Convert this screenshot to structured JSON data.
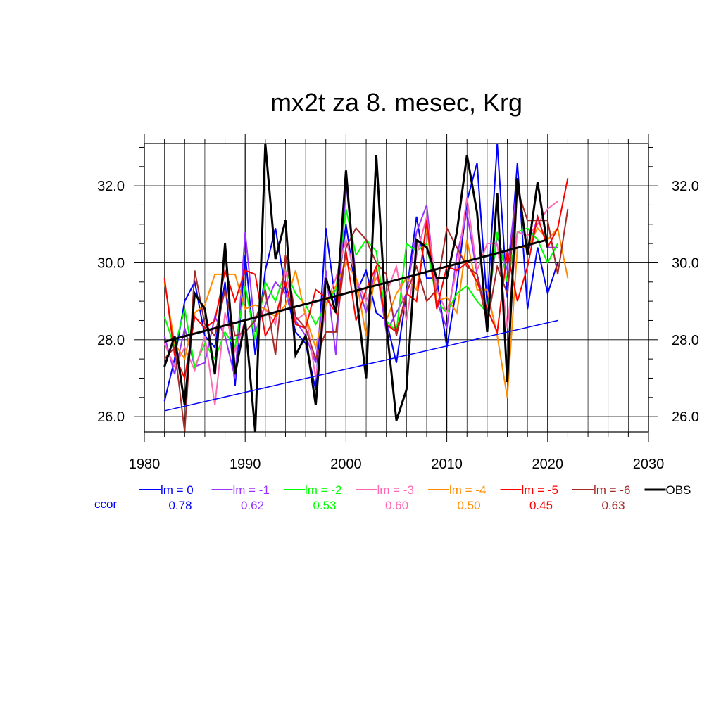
{
  "chart_data": {
    "type": "line",
    "title": "mx2t za 8. mesec, Krg",
    "xlim": [
      1980,
      2030
    ],
    "ylim": [
      25.6,
      33.1
    ],
    "x_ticks": [
      "1980",
      "1990",
      "2000",
      "2010",
      "2020",
      "2030"
    ],
    "y_ticks": [
      "26.0",
      "28.0",
      "30.0",
      "32.0"
    ],
    "grid": true,
    "legend_position": "bottom",
    "ccor_label": "ccor",
    "series": [
      {
        "name": "lm = 0",
        "color": "#0000ff",
        "ccor": "0.78",
        "x": [
          1982,
          1983,
          1984,
          1985,
          1986,
          1987,
          1988,
          1989,
          1990,
          1991,
          1992,
          1993,
          1994,
          1995,
          1996,
          1997,
          1998,
          1999,
          2000,
          2001,
          2002,
          2003,
          2004,
          2005,
          2006,
          2007,
          2008,
          2009,
          2010,
          2011,
          2012,
          2013,
          2014,
          2015,
          2016,
          2017,
          2018,
          2019,
          2020,
          2021
        ],
        "values": [
          26.4,
          27.5,
          29.0,
          29.5,
          28.1,
          27.8,
          29.5,
          26.8,
          30.2,
          27.6,
          29.8,
          30.9,
          29.3,
          28.2,
          27.9,
          26.7,
          30.9,
          28.9,
          31.0,
          29.2,
          29.8,
          28.7,
          28.5,
          27.4,
          29.2,
          31.2,
          29.6,
          29.6,
          27.8,
          29.4,
          31.6,
          32.6,
          28.9,
          33.1,
          29.1,
          32.6,
          28.8,
          30.4,
          29.2,
          30.0
        ]
      },
      {
        "name": "lm = -1",
        "color": "#9933ff",
        "ccor": "0.62",
        "x": [
          1982,
          1983,
          1984,
          1985,
          1986,
          1987,
          1988,
          1989,
          1990,
          1991,
          1992,
          1993,
          1994,
          1995,
          1996,
          1997,
          1998,
          1999,
          2000,
          2001,
          2002,
          2003,
          2004,
          2005,
          2006,
          2007,
          2008,
          2009,
          2010,
          2011,
          2012,
          2013,
          2014,
          2015,
          2016,
          2017,
          2018,
          2019,
          2020,
          2021
        ],
        "values": [
          28.1,
          27.1,
          28.3,
          27.3,
          27.4,
          28.6,
          28.1,
          27.0,
          30.8,
          28.2,
          28.9,
          29.5,
          29.2,
          28.5,
          28.1,
          27.4,
          29.8,
          27.6,
          32.1,
          29.6,
          28.7,
          29.9,
          28.2,
          28.7,
          29.2,
          30.8,
          31.5,
          29.0,
          28.3,
          30.2,
          31.3,
          29.7,
          28.7,
          30.7,
          29.8,
          32.1,
          30.2,
          31.2,
          30.4,
          30.4
        ]
      },
      {
        "name": "lm = -2",
        "color": "#00ff00",
        "ccor": "0.53",
        "x": [
          1982,
          1983,
          1984,
          1985,
          1986,
          1987,
          1988,
          1989,
          1990,
          1991,
          1992,
          1993,
          1994,
          1995,
          1996,
          1997,
          1998,
          1999,
          2000,
          2001,
          2002,
          2003,
          2004,
          2005,
          2006,
          2007,
          2008,
          2009,
          2010,
          2011,
          2012,
          2013,
          2014,
          2015,
          2016,
          2017,
          2018,
          2019,
          2020,
          2021
        ],
        "values": [
          28.6,
          27.8,
          28.8,
          27.3,
          27.9,
          27.5,
          28.2,
          27.8,
          29.4,
          28.0,
          29.5,
          29.0,
          29.8,
          29.2,
          28.9,
          28.4,
          28.9,
          29.3,
          31.4,
          30.2,
          30.6,
          30.3,
          28.5,
          28.2,
          30.5,
          30.3,
          30.5,
          29.0,
          28.7,
          29.2,
          29.4,
          29.0,
          28.7,
          30.8,
          29.5,
          30.8,
          30.9,
          30.6,
          30.0,
          30.5
        ]
      },
      {
        "name": "lm = -3",
        "color": "#ff69b4",
        "ccor": "0.60",
        "x": [
          1982,
          1983,
          1984,
          1985,
          1986,
          1987,
          1988,
          1989,
          1990,
          1991,
          1992,
          1993,
          1994,
          1995,
          1996,
          1997,
          1998,
          1999,
          2000,
          2001,
          2002,
          2003,
          2004,
          2005,
          2006,
          2007,
          2008,
          2009,
          2010,
          2011,
          2012,
          2013,
          2014,
          2015,
          2016,
          2017,
          2018,
          2019,
          2020,
          2021
        ],
        "values": [
          27.9,
          27.3,
          27.8,
          27.2,
          28.1,
          26.3,
          28.7,
          27.7,
          28.5,
          28.6,
          28.8,
          28.4,
          29.8,
          28.5,
          28.7,
          27.0,
          28.9,
          29.6,
          30.6,
          29.6,
          29.0,
          29.6,
          29.2,
          29.9,
          28.5,
          30.2,
          31.2,
          29.3,
          28.7,
          29.8,
          31.7,
          29.8,
          30.5,
          30.5,
          28.3,
          30.8,
          30.7,
          31.0,
          31.4,
          31.6
        ]
      },
      {
        "name": "lm = -4",
        "color": "#ff8c00",
        "ccor": "0.50",
        "x": [
          1982,
          1983,
          1984,
          1985,
          1986,
          1987,
          1988,
          1989,
          1990,
          1991,
          1992,
          1993,
          1994,
          1995,
          1996,
          1997,
          1998,
          1999,
          2000,
          2001,
          2002,
          2003,
          2004,
          2005,
          2006,
          2007,
          2008,
          2009,
          2010,
          2011,
          2012,
          2013,
          2014,
          2015,
          2016,
          2017,
          2018,
          2019,
          2020,
          2021,
          2022
        ],
        "values": [
          29.5,
          27.9,
          27.5,
          28.7,
          28.9,
          29.7,
          29.7,
          29.7,
          28.8,
          28.9,
          28.8,
          28.6,
          28.9,
          29.8,
          28.6,
          27.8,
          28.9,
          29.4,
          30.0,
          29.6,
          28.1,
          29.9,
          28.5,
          29.2,
          29.6,
          29.3,
          30.9,
          29.0,
          29.1,
          28.7,
          30.6,
          29.3,
          29.3,
          28.1,
          26.5,
          30.4,
          30.4,
          30.9,
          30.6,
          30.9,
          29.6
        ]
      },
      {
        "name": "lm = -5",
        "color": "#ff0000",
        "ccor": "0.45",
        "x": [
          1982,
          1983,
          1984,
          1985,
          1986,
          1987,
          1988,
          1989,
          1990,
          1991,
          1992,
          1993,
          1994,
          1995,
          1996,
          1997,
          1998,
          1999,
          2000,
          2001,
          2002,
          2003,
          2004,
          2005,
          2006,
          2007,
          2008,
          2009,
          2010,
          2011,
          2012,
          2013,
          2014,
          2015,
          2016,
          2017,
          2018,
          2019,
          2020,
          2021,
          2022
        ],
        "values": [
          29.6,
          27.6,
          27.0,
          28.6,
          28.3,
          28.5,
          29.8,
          29.0,
          29.8,
          29.7,
          28.1,
          28.6,
          29.5,
          28.4,
          28.3,
          29.3,
          29.1,
          28.7,
          30.3,
          28.5,
          29.3,
          29.9,
          28.4,
          28.2,
          29.2,
          29.0,
          31.1,
          28.8,
          29.9,
          29.8,
          30.0,
          29.5,
          28.8,
          28.2,
          30.3,
          29.0,
          29.9,
          31.2,
          30.4,
          30.9,
          32.2
        ]
      },
      {
        "name": "lm = -6",
        "color": "#a52a2a",
        "ccor": "0.63",
        "x": [
          1982,
          1983,
          1984,
          1985,
          1986,
          1987,
          1988,
          1989,
          1990,
          1991,
          1992,
          1993,
          1994,
          1995,
          1996,
          1997,
          1998,
          1999,
          2000,
          2001,
          2002,
          2003,
          2004,
          2005,
          2006,
          2007,
          2008,
          2009,
          2010,
          2011,
          2012,
          2013,
          2014,
          2015,
          2016,
          2017,
          2018,
          2019,
          2020,
          2021,
          2022
        ],
        "values": [
          27.5,
          27.8,
          25.6,
          29.8,
          28.4,
          28.1,
          29.3,
          28.1,
          28.2,
          28.5,
          29.3,
          27.6,
          30.2,
          28.6,
          28.3,
          27.5,
          28.2,
          28.2,
          30.4,
          30.9,
          30.6,
          30.0,
          29.7,
          28.1,
          29.2,
          29.9,
          29.0,
          29.3,
          30.9,
          30.4,
          29.9,
          29.7,
          28.4,
          29.9,
          29.2,
          31.9,
          31.1,
          31.1,
          31.1,
          29.7,
          31.4
        ]
      },
      {
        "name": "OBS",
        "color": "#000000",
        "ccor": "",
        "x": [
          1982,
          1983,
          1984,
          1985,
          1986,
          1987,
          1988,
          1989,
          1990,
          1991,
          1992,
          1993,
          1994,
          1995,
          1996,
          1997,
          1998,
          1999,
          2000,
          2001,
          2002,
          2003,
          2004,
          2005,
          2006,
          2007,
          2008,
          2009,
          2010,
          2011,
          2012,
          2013,
          2014,
          2015,
          2016,
          2017,
          2018,
          2019,
          2020
        ],
        "values": [
          27.3,
          28.1,
          26.3,
          29.2,
          28.8,
          27.1,
          30.5,
          27.1,
          28.5,
          25.6,
          33.1,
          30.1,
          31.1,
          27.6,
          28.1,
          26.3,
          29.6,
          28.7,
          32.4,
          29.2,
          27.0,
          32.8,
          28.4,
          25.9,
          26.7,
          30.6,
          30.4,
          29.6,
          29.6,
          30.8,
          32.8,
          31.3,
          28.2,
          31.8,
          26.9,
          32.2,
          30.2,
          32.1,
          30.4
        ]
      }
    ],
    "trend_lines": [
      {
        "name": "lm = 0 trend",
        "color": "#0000ff",
        "x": [
          1982,
          2021
        ],
        "values": [
          26.15,
          28.5
        ]
      },
      {
        "name": "OBS trend",
        "color": "#000000",
        "x": [
          1982,
          2020
        ],
        "values": [
          27.95,
          30.6
        ]
      }
    ]
  }
}
